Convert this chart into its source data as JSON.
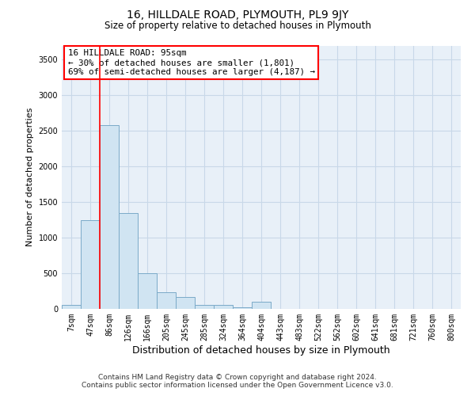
{
  "title": "16, HILLDALE ROAD, PLYMOUTH, PL9 9JY",
  "subtitle": "Size of property relative to detached houses in Plymouth",
  "xlabel": "Distribution of detached houses by size in Plymouth",
  "ylabel": "Number of detached properties",
  "bar_color": "#d0e4f2",
  "bar_edgecolor": "#7aaac8",
  "grid_color": "#c8d8e8",
  "bg_color": "#e8f0f8",
  "annotation_text_line1": "16 HILLDALE ROAD: 95sqm",
  "annotation_text_line2": "← 30% of detached houses are smaller (1,801)",
  "annotation_text_line3": "69% of semi-detached houses are larger (4,187) →",
  "footer_line1": "Contains HM Land Registry data © Crown copyright and database right 2024.",
  "footer_line2": "Contains public sector information licensed under the Open Government Licence v3.0.",
  "categories": [
    "7sqm",
    "47sqm",
    "86sqm",
    "126sqm",
    "166sqm",
    "205sqm",
    "245sqm",
    "285sqm",
    "324sqm",
    "364sqm",
    "404sqm",
    "443sqm",
    "483sqm",
    "522sqm",
    "562sqm",
    "602sqm",
    "641sqm",
    "681sqm",
    "721sqm",
    "760sqm",
    "800sqm"
  ],
  "values": [
    55,
    1250,
    2580,
    1350,
    500,
    230,
    170,
    60,
    55,
    25,
    100,
    5,
    5,
    5,
    5,
    5,
    5,
    5,
    5,
    5,
    5
  ],
  "ylim": [
    0,
    3700
  ],
  "red_line_index": 2
}
